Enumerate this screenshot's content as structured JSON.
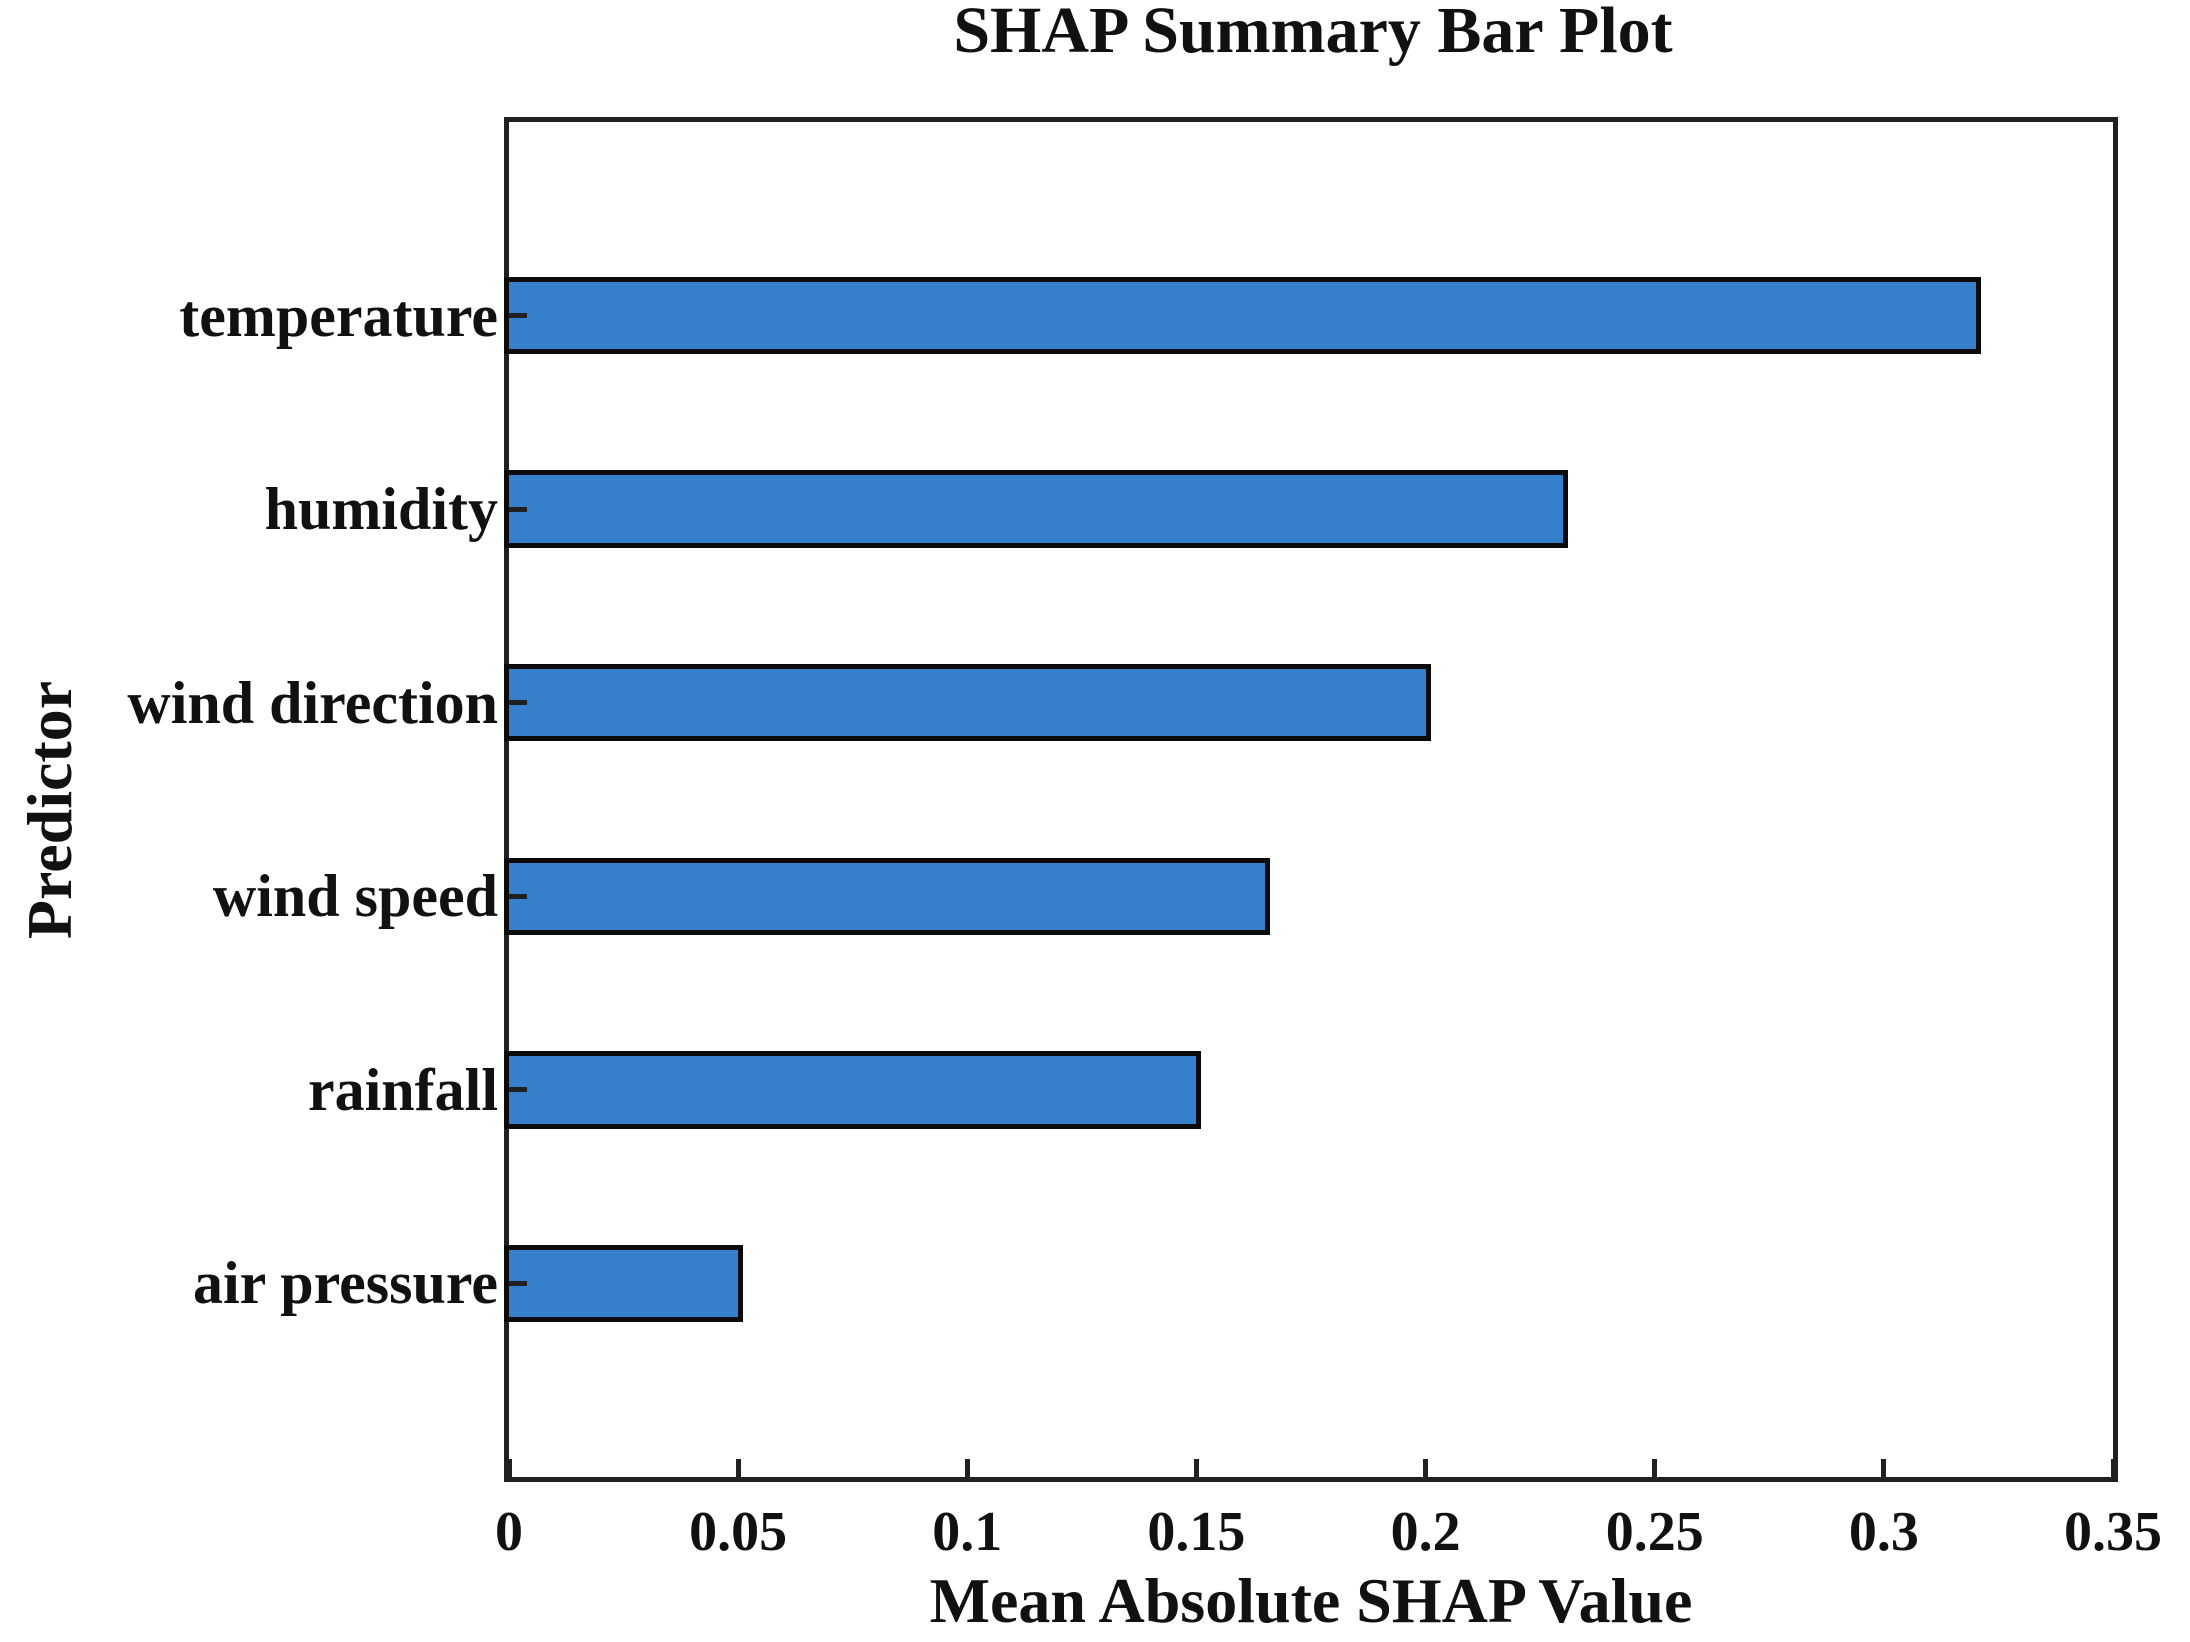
{
  "chart_data": {
    "type": "bar",
    "orientation": "horizontal",
    "title": "SHAP Summary Bar Plot",
    "xlabel": "Mean Absolute SHAP Value",
    "ylabel": "Predictor",
    "categories": [
      "temperature",
      "humidity",
      "wind direction",
      "wind speed",
      "rainfall",
      "air pressure"
    ],
    "values": [
      0.32,
      0.23,
      0.2,
      0.165,
      0.15,
      0.05
    ],
    "xlim": [
      0,
      0.35
    ],
    "ylim_units": [
      0,
      7
    ],
    "xticks": [
      0,
      0.05,
      0.1,
      0.15,
      0.2,
      0.25,
      0.3,
      0.35
    ],
    "xtick_labels": [
      "0",
      "0.05",
      "0.1",
      "0.15",
      "0.2",
      "0.25",
      "0.3",
      "0.35"
    ],
    "bar_color": "#357FCB",
    "bar_edge_color": "#0b0b0b",
    "axis_color": "#202020",
    "text_color": "#111111",
    "grid": false,
    "legend": "none",
    "bar_height_fraction": 0.4
  }
}
